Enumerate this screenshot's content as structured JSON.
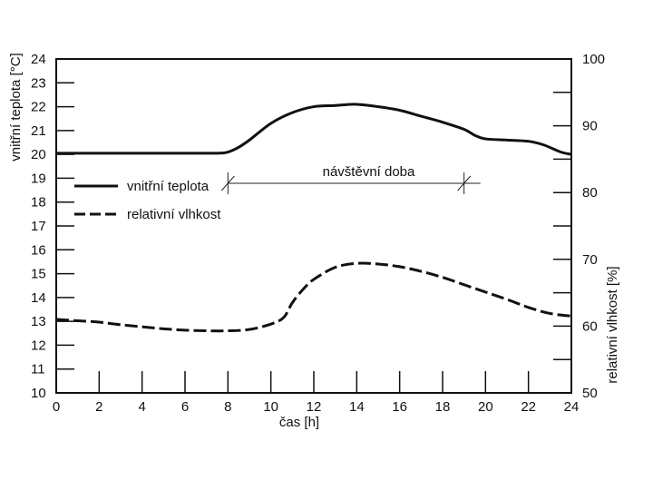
{
  "chart_data": {
    "type": "line",
    "xlabel": "čas [h]",
    "ylabel_left": "vnitřní teplota [°C]",
    "ylabel_right": "relativní vlhkost [%]",
    "xlim": [
      0,
      24
    ],
    "ylim_left": [
      10,
      24
    ],
    "ylim_right": [
      50,
      100
    ],
    "x_ticks": [
      0,
      2,
      4,
      6,
      8,
      10,
      12,
      14,
      16,
      18,
      20,
      22,
      24
    ],
    "y_left_ticks": [
      10,
      11,
      12,
      13,
      14,
      15,
      16,
      17,
      18,
      19,
      20,
      21,
      22,
      23,
      24
    ],
    "y_right_ticks": [
      50,
      60,
      70,
      80,
      90,
      100
    ],
    "legend": [
      {
        "label": "vnitřní teplota",
        "style": "solid"
      },
      {
        "label": "relativní vlhkost",
        "style": "dashed"
      }
    ],
    "annotation": {
      "label": "návštěvní doba",
      "x_start": 8,
      "x_end": 19
    },
    "series": [
      {
        "name": "vnitřní teplota",
        "axis": "left",
        "style": "solid",
        "x": [
          0,
          2,
          4,
          6,
          7.5,
          8,
          8.5,
          9,
          10,
          11,
          12,
          13,
          14,
          15,
          16,
          17,
          18,
          19,
          19.5,
          20,
          21,
          22,
          22.7,
          23.5,
          24
        ],
        "y": [
          20.05,
          20.05,
          20.05,
          20.05,
          20.05,
          20.1,
          20.3,
          20.6,
          21.3,
          21.75,
          22.0,
          22.05,
          22.1,
          22.0,
          21.85,
          21.6,
          21.35,
          21.05,
          20.8,
          20.65,
          20.6,
          20.55,
          20.4,
          20.1,
          20.0
        ]
      },
      {
        "name": "relativní vlhkost",
        "axis": "right",
        "style": "dashed",
        "x": [
          0,
          1,
          2,
          3,
          4,
          5,
          6,
          7,
          8,
          9,
          10,
          10.6,
          11,
          11.5,
          12,
          13,
          14,
          15,
          16,
          17,
          18,
          19,
          20,
          21,
          22,
          23,
          24
        ],
        "y": [
          61.0,
          60.8,
          60.6,
          60.2,
          59.9,
          59.6,
          59.4,
          59.3,
          59.3,
          59.5,
          60.3,
          61.3,
          63.5,
          65.5,
          67.0,
          68.8,
          69.4,
          69.3,
          68.9,
          68.2,
          67.3,
          66.2,
          65.1,
          64.0,
          62.8,
          61.9,
          61.5
        ]
      }
    ]
  }
}
